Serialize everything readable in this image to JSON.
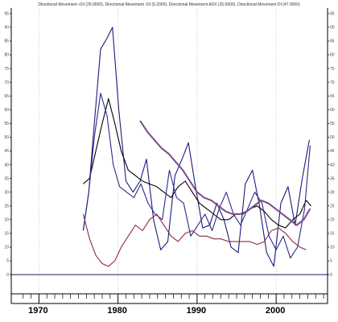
{
  "chart_data": {
    "type": "line",
    "header": "Directional Movement +DI (25.0000), Directional Movement -DI (9.2000), Directional Movement ADX (25.0000), Directional Movement DI (47.0000)",
    "xlabel": "",
    "ylabel": "",
    "xlim": [
      1966.5,
      2006.5
    ],
    "ylim": [
      -7,
      97
    ],
    "y_ticks": [
      0,
      5,
      10,
      15,
      20,
      25,
      30,
      35,
      40,
      45,
      50,
      55,
      60,
      65,
      70,
      75,
      80,
      85,
      90,
      95
    ],
    "x_ticks": [
      1970,
      1980,
      1990,
      2000
    ],
    "grid": "vertical dotted at decades",
    "colors": {
      "frame": "#000000",
      "grid": "#c8c8c8"
    },
    "series": [
      {
        "color": "#1a1a7a",
        "x": [
          1975.6,
          1976.3,
          1977.0,
          1977.8,
          1978.6,
          1979.3,
          1980.1,
          1981.0,
          1981.9,
          1982.8,
          1983.6,
          1984.5,
          1985.4,
          1986.3,
          1987.2,
          1988.1,
          1988.9,
          1989.8,
          1990.7,
          1991.6,
          1992.5,
          1993.4,
          1994.3,
          1995.2,
          1996.1,
          1997.0,
          1997.9,
          1998.8,
          1999.7,
          2000.6,
          2001.5,
          2002.4,
          2003.3,
          2004.2
        ],
        "values": [
          16,
          30,
          55,
          82,
          86,
          90,
          60,
          34,
          30,
          34,
          42,
          20,
          9,
          12,
          36,
          42,
          48,
          32,
          17,
          18,
          26,
          20,
          10,
          8,
          33,
          38,
          25,
          8,
          3,
          26,
          32,
          18,
          35,
          49
        ]
      },
      {
        "color": "#000000",
        "x": [
          1975.6,
          1976.4,
          1977.2,
          1978.0,
          1978.8,
          1979.6,
          1980.4,
          1981.3,
          1982.2,
          1983.1,
          1984.0,
          1984.9,
          1985.8,
          1986.7,
          1987.6,
          1988.5,
          1989.4,
          1990.3,
          1991.2,
          1992.1,
          1993.0,
          1994.0,
          1994.9,
          1995.8,
          1996.7,
          1997.6,
          1998.5,
          1999.4,
          2000.3,
          2001.2,
          2002.1,
          2003.0,
          2003.8,
          2004.4
        ],
        "values": [
          33,
          35,
          45,
          55,
          64,
          55,
          45,
          38,
          36,
          34,
          33,
          32,
          30,
          28,
          32,
          34,
          30,
          26,
          24,
          22,
          20,
          20,
          22,
          22,
          24,
          25,
          23,
          20,
          18,
          17,
          20,
          22,
          27,
          25
        ]
      },
      {
        "color": "#2a2a8a",
        "x": [
          1975.6,
          1976.3,
          1977.0,
          1977.8,
          1978.6,
          1979.4,
          1980.2,
          1981.1,
          1982.0,
          1982.9,
          1983.8,
          1984.7,
          1985.6,
          1986.5,
          1987.4,
          1988.3,
          1989.2,
          1990.1,
          1991.0,
          1991.9,
          1992.8,
          1993.7,
          1994.6,
          1995.5,
          1996.4,
          1997.3,
          1998.2,
          1999.1,
          2000.0,
          2000.9,
          2001.8,
          2002.7,
          2003.6,
          2004.3
        ],
        "values": [
          16,
          30,
          50,
          66,
          58,
          40,
          32,
          30,
          28,
          33,
          26,
          22,
          20,
          38,
          28,
          26,
          14,
          18,
          22,
          16,
          24,
          30,
          22,
          18,
          24,
          30,
          26,
          14,
          9,
          14,
          6,
          10,
          24,
          47
        ]
      },
      {
        "color": "#8a2a4a",
        "x": [
          1975.6,
          1976.4,
          1977.2,
          1978.0,
          1978.8,
          1979.6,
          1980.4,
          1981.3,
          1982.2,
          1983.1,
          1984.0,
          1984.9,
          1985.8,
          1986.7,
          1987.6,
          1988.5,
          1989.4,
          1990.3,
          1991.2,
          1992.1,
          1993.0,
          1994.0,
          1994.9,
          1995.8,
          1996.7,
          1997.6,
          1998.5,
          1999.4,
          2000.3,
          2001.2,
          2002.1,
          2003.0,
          2003.8
        ],
        "values": [
          22,
          13,
          7,
          4,
          3,
          5,
          10,
          14,
          18,
          16,
          20,
          22,
          18,
          14,
          12,
          15,
          16,
          14,
          14,
          13,
          13,
          12,
          12,
          12,
          12,
          11,
          12,
          16,
          17,
          15,
          12,
          10,
          9
        ]
      },
      {
        "color": "#7a4a8a",
        "x": [
          1982.8,
          1983.7,
          1984.6,
          1985.5,
          1986.4,
          1987.3,
          1988.2,
          1989.1,
          1990.0,
          1990.9,
          1991.8,
          1992.7,
          1993.6,
          1994.5,
          1995.4,
          1996.3,
          1997.2,
          1998.1,
          1999.0,
          1999.9,
          2000.8,
          2001.7,
          2002.6,
          2003.5,
          2004.3
        ],
        "values": [
          56,
          52,
          49,
          46,
          44,
          41,
          38,
          34,
          30,
          28,
          27,
          25,
          23,
          22,
          22,
          23,
          25,
          27,
          26,
          24,
          22,
          20,
          18,
          20,
          24
        ]
      }
    ]
  }
}
